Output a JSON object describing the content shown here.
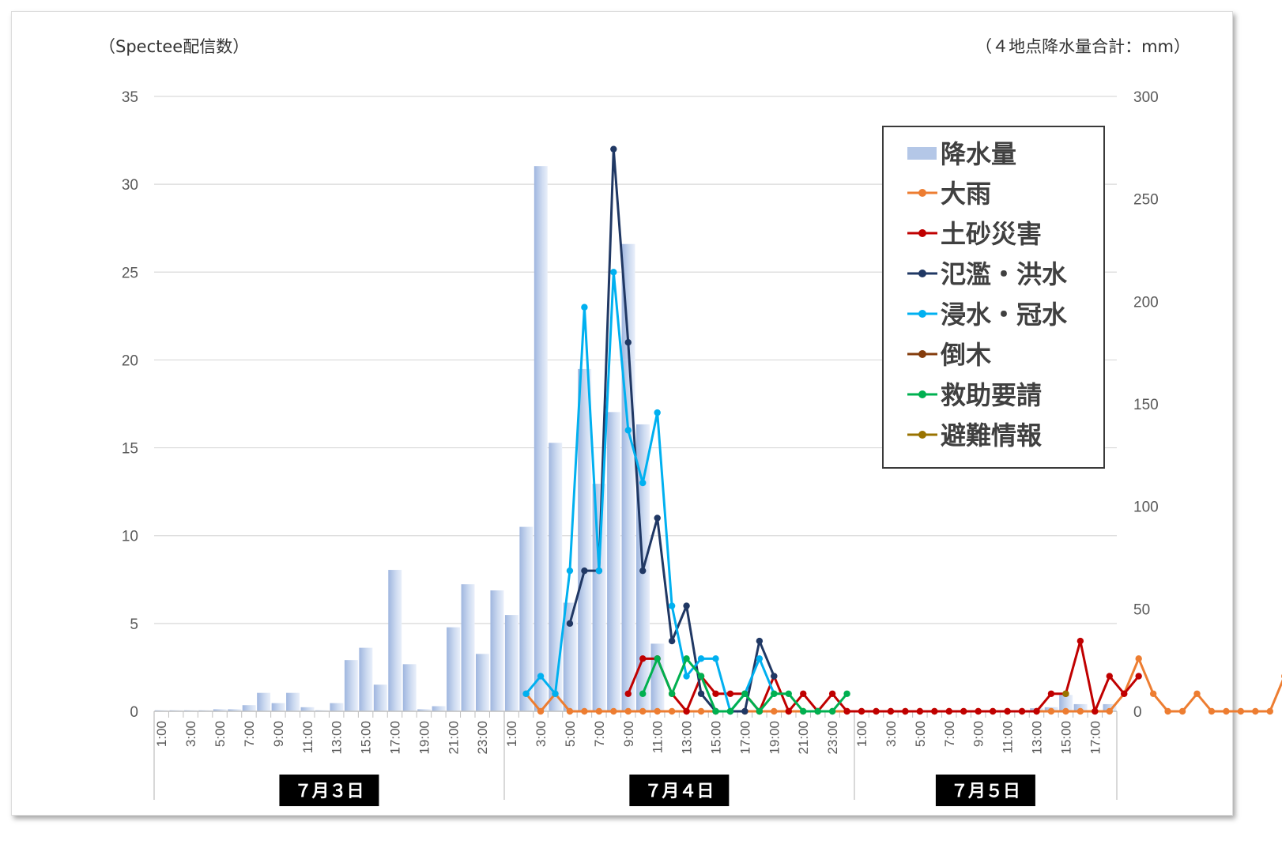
{
  "chart_data": {
    "type": "bar+line",
    "ylabel_left": "（Spectee配信数）",
    "ylabel_right": "（４地点降水量合計：mm）",
    "ylim_left": [
      0,
      35
    ],
    "ylim_right": [
      0,
      300
    ],
    "yticks_left": [
      0,
      5,
      10,
      15,
      20,
      25,
      30,
      35
    ],
    "yticks_right": [
      0,
      50,
      100,
      150,
      200,
      250,
      300
    ],
    "grid": true,
    "legend_position": "top-right",
    "x_tick_labels": [
      "1:00",
      "3:00",
      "5:00",
      "7:00",
      "9:00",
      "11:00",
      "13:00",
      "15:00",
      "17:00",
      "19:00",
      "21:00",
      "23:00",
      "1:00",
      "3:00",
      "5:00",
      "7:00",
      "9:00",
      "11:00",
      "13:00",
      "15:00",
      "17:00",
      "19:00",
      "21:00",
      "23:00",
      "1:00",
      "3:00",
      "5:00",
      "7:00",
      "9:00",
      "11:00",
      "13:00",
      "15:00",
      "17:00"
    ],
    "day_groups": [
      {
        "label": "７月３日",
        "start_hour": 1,
        "end_hour": 24
      },
      {
        "label": "７月４日",
        "start_hour": 25,
        "end_hour": 48
      },
      {
        "label": "７月５日",
        "start_hour": 49,
        "end_hour": 66
      }
    ],
    "x_start": 1,
    "x_end": 66,
    "precipitation": {
      "name": "降水量",
      "axis": "right",
      "color": "#b4c7e7",
      "values": [
        0.5,
        0.5,
        0.5,
        0.5,
        1,
        1,
        3,
        9,
        4,
        9,
        2,
        0.5,
        4,
        25,
        31,
        13,
        69,
        23,
        1,
        2.5,
        41,
        62,
        28,
        59,
        47,
        90,
        266,
        131,
        53,
        167,
        111,
        146,
        228,
        140,
        33,
        0,
        0,
        0,
        0,
        0,
        0,
        0,
        0,
        0,
        0,
        0,
        0,
        0,
        0,
        0,
        0,
        0,
        0,
        0,
        0,
        0,
        0,
        0,
        0,
        0,
        1.5,
        2,
        8,
        3.5,
        0.5,
        3.5
      ]
    },
    "series": [
      {
        "name": "大雨",
        "color": "#ed7d31",
        "start_hour": 26,
        "values": [
          1,
          0,
          1,
          0,
          0,
          0,
          0,
          0,
          0,
          0,
          0,
          0,
          0,
          0,
          0,
          0,
          0,
          0,
          0,
          0,
          0,
          0,
          0,
          0,
          0,
          0,
          0,
          0,
          0,
          0,
          0,
          0,
          0,
          0,
          0,
          0,
          0,
          0,
          0,
          0,
          0,
          1,
          3,
          1,
          0,
          0,
          1,
          0,
          0,
          0,
          0,
          0,
          2
        ]
      },
      {
        "name": "土砂災害",
        "color": "#c00000",
        "start_hour": 33,
        "values": [
          1,
          3,
          3,
          1,
          0,
          2,
          1,
          1,
          1,
          0,
          2,
          0,
          1,
          0,
          1,
          0,
          0,
          0,
          0,
          0,
          0,
          0,
          0,
          0,
          0,
          0,
          0,
          0,
          0,
          1,
          1,
          4,
          0,
          2,
          1,
          2
        ]
      },
      {
        "name": "氾濫・洪水",
        "color": "#203864",
        "start_hour": 29,
        "values": [
          5,
          8,
          8,
          32,
          21,
          8,
          11,
          4,
          6,
          1,
          0,
          0,
          0,
          4,
          2
        ]
      },
      {
        "name": "浸水・冠水",
        "color": "#00b0f0",
        "start_hour": 26,
        "values": [
          1,
          2,
          1,
          8,
          23,
          8,
          25,
          16,
          13,
          17,
          6,
          2,
          3,
          3,
          0,
          1,
          3,
          1
        ]
      },
      {
        "name": "倒木",
        "color": "#843c0c",
        "start_hour": 0,
        "values": []
      },
      {
        "name": "救助要請",
        "color": "#00b050",
        "start_hour": 34,
        "values": [
          1,
          3,
          1,
          3,
          2,
          0,
          0,
          1,
          0,
          1,
          1,
          0,
          0,
          0,
          1
        ]
      },
      {
        "name": "避難情報",
        "color": "#997300",
        "start_hour": 63,
        "values": [
          1
        ]
      }
    ]
  }
}
